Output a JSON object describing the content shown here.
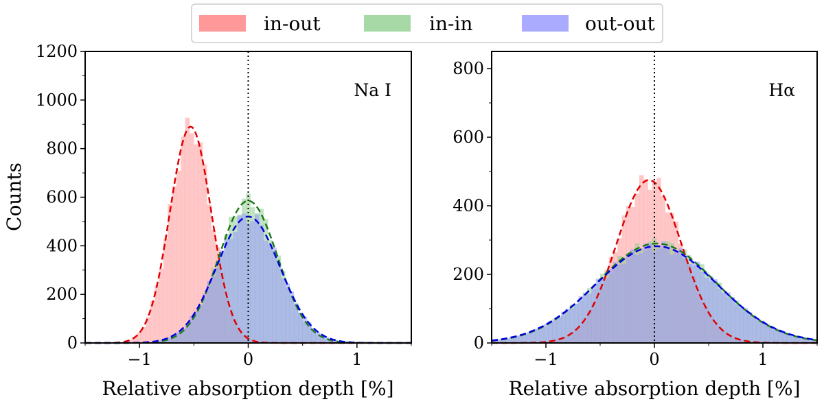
{
  "legend": {
    "placement": "top-center",
    "entries": [
      {
        "label": "in-out",
        "color": "#ff9999"
      },
      {
        "label": "in-in",
        "color": "#8fce8f"
      },
      {
        "label": "out-out",
        "color": "#9999ff"
      }
    ]
  },
  "chart_data": [
    {
      "type": "histogram",
      "annotation": "Na I",
      "xlabel": "Relative absorption depth [%]",
      "ylabel": "Counts",
      "xlim": [
        -1.5,
        1.5
      ],
      "ylim": [
        0,
        1200
      ],
      "xticks": [
        -1,
        0,
        1
      ],
      "yticks": [
        0,
        200,
        400,
        600,
        800,
        1000,
        1200
      ],
      "vline_x": 0,
      "series": [
        {
          "name": "in-out",
          "mu": -0.53,
          "sigma": 0.19,
          "peak": 890,
          "fill": "#ff9999",
          "fit_color": "#e00000"
        },
        {
          "name": "in-in",
          "mu": 0.0,
          "sigma": 0.27,
          "peak": 585,
          "fill": "#8fce8f",
          "fit_color": "#1a7a1a"
        },
        {
          "name": "out-out",
          "mu": 0.0,
          "sigma": 0.29,
          "peak": 520,
          "fill": "#9999ff",
          "fit_color": "#0000e0"
        }
      ]
    },
    {
      "type": "histogram",
      "annotation": "Hα",
      "xlabel": "Relative absorption depth [%]",
      "ylabel": "",
      "xlim": [
        -1.5,
        1.5
      ],
      "ylim": [
        0,
        850
      ],
      "xticks": [
        -1,
        0,
        1
      ],
      "yticks": [
        0,
        200,
        400,
        600,
        800
      ],
      "vline_x": 0,
      "series": [
        {
          "name": "in-out",
          "mu": -0.05,
          "sigma": 0.3,
          "peak": 475,
          "fill": "#ff9999",
          "fit_color": "#e00000"
        },
        {
          "name": "in-in",
          "mu": 0.02,
          "sigma": 0.55,
          "peak": 290,
          "fill": "#8fce8f",
          "fit_color": "#1a7a1a"
        },
        {
          "name": "out-out",
          "mu": 0.02,
          "sigma": 0.56,
          "peak": 282,
          "fill": "#9999ff",
          "fit_color": "#0000e0"
        }
      ]
    }
  ]
}
